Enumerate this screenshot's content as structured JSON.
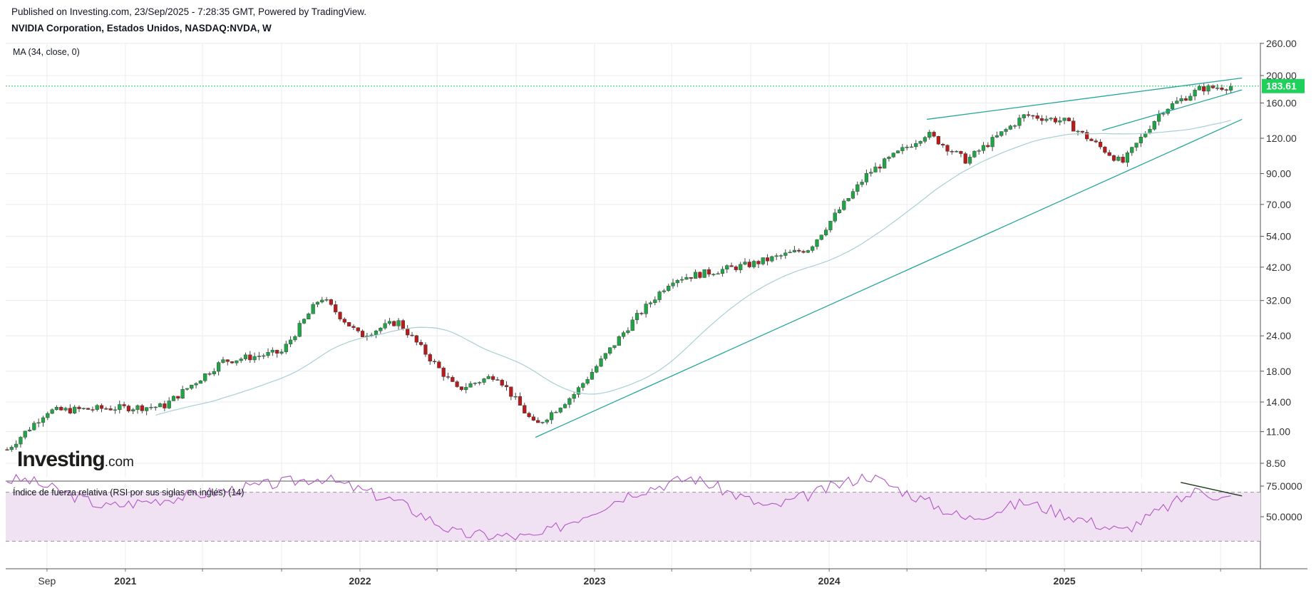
{
  "header": {
    "published": "Published on Investing.com, 23/Sep/2025 - 7:28:35 GMT, Powered by TradingView.",
    "symbol": "NVIDIA Corporation, Estados Unidos, NASDAQ:NVDA, W"
  },
  "logo": {
    "brand": "Investing",
    "suffix": ".com"
  },
  "colors": {
    "up": "#22a347",
    "down": "#b71c1c",
    "ma": "#a9cfd4",
    "trend": "#26a69a",
    "rsi": "#b257c7",
    "rsi_band": "#f1e2f3",
    "price_tag": "#1fd05a",
    "grid": "#ececec"
  },
  "chart_data": [
    {
      "type": "candlestick",
      "indicator_label": "MA (34, close, 0)",
      "scale": "log",
      "y_ticks": [
        "260.00",
        "200.00",
        "160.00",
        "120.00",
        "90.00",
        "70.00",
        "54.00",
        "42.00",
        "32.00",
        "24.00",
        "18.00",
        "14.00",
        "11.00",
        "8.50"
      ],
      "x_ticks": [
        "Sep",
        "2021",
        "2022",
        "2023",
        "2024",
        "2025"
      ],
      "last_price": "183.61",
      "weekly_close_samples": [
        {
          "date": "2020-07",
          "close": 9.5
        },
        {
          "date": "2020-09",
          "close": 13.0
        },
        {
          "date": "2020-12",
          "close": 13.3
        },
        {
          "date": "2021-03",
          "close": 13.5
        },
        {
          "date": "2021-06",
          "close": 19.5
        },
        {
          "date": "2021-09",
          "close": 21.0
        },
        {
          "date": "2021-11",
          "close": 33.0
        },
        {
          "date": "2022-01",
          "close": 24.0
        },
        {
          "date": "2022-03",
          "close": 27.0
        },
        {
          "date": "2022-06",
          "close": 15.5
        },
        {
          "date": "2022-08",
          "close": 17.5
        },
        {
          "date": "2022-10",
          "close": 11.5
        },
        {
          "date": "2022-12",
          "close": 15.0
        },
        {
          "date": "2023-03",
          "close": 27.0
        },
        {
          "date": "2023-05",
          "close": 38.0
        },
        {
          "date": "2023-09",
          "close": 43.0
        },
        {
          "date": "2023-12",
          "close": 49.0
        },
        {
          "date": "2024-03",
          "close": 90.0
        },
        {
          "date": "2024-06",
          "close": 125.0
        },
        {
          "date": "2024-08",
          "close": 100.0
        },
        {
          "date": "2024-11",
          "close": 145.0
        },
        {
          "date": "2025-01",
          "close": 138.0
        },
        {
          "date": "2025-04",
          "close": 98.0
        },
        {
          "date": "2025-06",
          "close": 150.0
        },
        {
          "date": "2025-08",
          "close": 180.0
        },
        {
          "date": "2025-09",
          "close": 183.61
        }
      ]
    },
    {
      "type": "line",
      "indicator_label": "Índice de fuerza relativa (RSI por sus siglas en inglés) (14)",
      "y_ticks": [
        "75.0000",
        "50.0000"
      ],
      "band": [
        30,
        70
      ],
      "rsi_samples": [
        {
          "date": "2020-08",
          "value": 80
        },
        {
          "date": "2020-12",
          "value": 58
        },
        {
          "date": "2021-06",
          "value": 71
        },
        {
          "date": "2021-11",
          "value": 82
        },
        {
          "date": "2022-03",
          "value": 62
        },
        {
          "date": "2022-06",
          "value": 36
        },
        {
          "date": "2022-10",
          "value": 33
        },
        {
          "date": "2023-03",
          "value": 70
        },
        {
          "date": "2023-06",
          "value": 82
        },
        {
          "date": "2023-10",
          "value": 57
        },
        {
          "date": "2024-03",
          "value": 84
        },
        {
          "date": "2024-08",
          "value": 48
        },
        {
          "date": "2024-11",
          "value": 62
        },
        {
          "date": "2025-04",
          "value": 38
        },
        {
          "date": "2025-08",
          "value": 73
        },
        {
          "date": "2025-09",
          "value": 65
        }
      ]
    }
  ]
}
